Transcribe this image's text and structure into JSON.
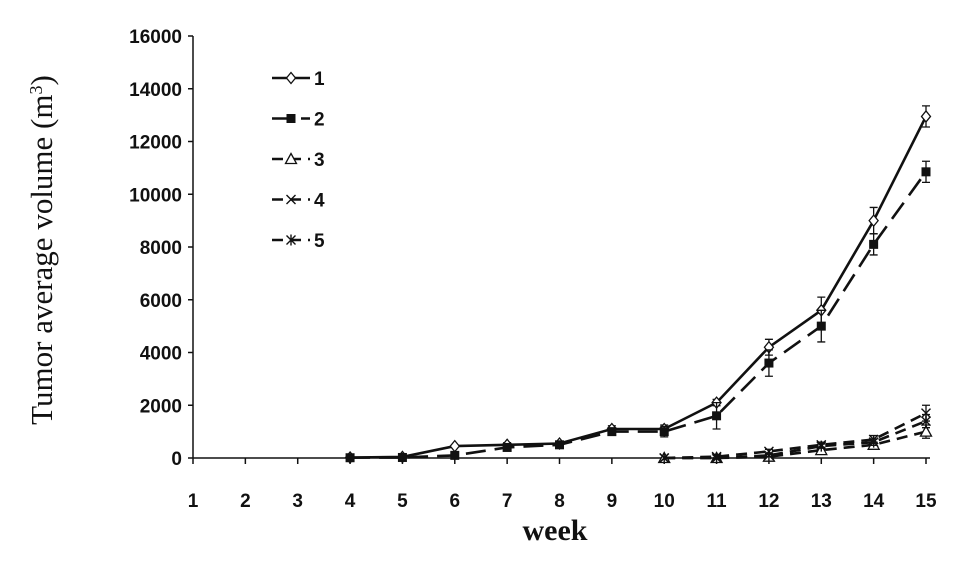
{
  "chart_data": {
    "type": "line",
    "xlabel": "week",
    "ylabel": "Tumor average volume (m",
    "ylabel_sup": "3",
    "ylabel_close": ")",
    "xlim": [
      1,
      15
    ],
    "ylim": [
      0,
      16000
    ],
    "x_ticks": [
      1,
      2,
      3,
      4,
      5,
      6,
      7,
      8,
      9,
      10,
      11,
      12,
      13,
      14,
      15
    ],
    "y_ticks": [
      0,
      2000,
      4000,
      6000,
      8000,
      10000,
      12000,
      14000,
      16000
    ],
    "y_tick_labels": [
      "0",
      "2000",
      "4000",
      "6000",
      "8000",
      "10000",
      "12000",
      "14000",
      "16000"
    ],
    "grid": false,
    "legend_position": "top-left",
    "series": [
      {
        "name": "1",
        "marker": "diamond",
        "dash": "solid",
        "x": [
          4,
          5,
          6,
          7,
          8,
          9,
          10,
          11,
          12,
          13,
          14,
          15
        ],
        "y": [
          20,
          40,
          450,
          500,
          550,
          1100,
          1100,
          2100,
          4200,
          5600,
          9000,
          12950
        ],
        "err": [
          0,
          0,
          0,
          80,
          80,
          120,
          150,
          120,
          300,
          500,
          500,
          400
        ]
      },
      {
        "name": "2",
        "marker": "square",
        "dash": "long",
        "x": [
          4,
          5,
          6,
          7,
          8,
          9,
          10,
          11,
          12,
          13,
          14,
          15
        ],
        "y": [
          10,
          20,
          100,
          400,
          500,
          1000,
          1000,
          1600,
          3600,
          5000,
          8100,
          10850
        ],
        "err": [
          0,
          0,
          0,
          50,
          50,
          100,
          200,
          500,
          500,
          600,
          400,
          400
        ]
      },
      {
        "name": "3",
        "marker": "triangle",
        "dash": "short",
        "x": [
          10,
          11,
          12,
          13,
          14,
          15
        ],
        "y": [
          0,
          0,
          50,
          300,
          500,
          1000
        ],
        "err": [
          0,
          0,
          50,
          100,
          100,
          250
        ]
      },
      {
        "name": "4",
        "marker": "x",
        "dash": "short",
        "x": [
          10,
          11,
          12,
          13,
          14,
          15
        ],
        "y": [
          0,
          50,
          250,
          500,
          700,
          1700
        ],
        "err": [
          0,
          50,
          80,
          100,
          150,
          300
        ]
      },
      {
        "name": "5",
        "marker": "star",
        "dash": "short",
        "x": [
          10,
          11,
          12,
          13,
          14,
          15
        ],
        "y": [
          0,
          0,
          100,
          450,
          600,
          1400
        ],
        "err": [
          0,
          0,
          50,
          80,
          120,
          250
        ]
      }
    ]
  }
}
